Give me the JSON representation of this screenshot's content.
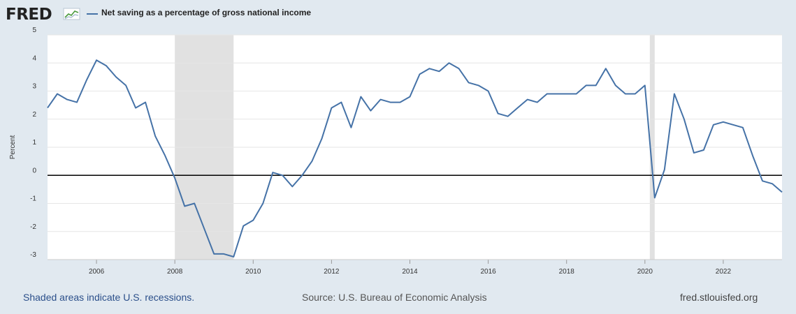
{
  "header": {
    "logo_text": "FRED",
    "logo_icon": "fred-chart-icon",
    "series_title": "Net saving as a percentage of gross national income"
  },
  "footer": {
    "recession_note": "Shaded areas indicate U.S. recessions.",
    "source": "Source: U.S. Bureau of Economic Analysis",
    "site": "fred.stlouisfed.org"
  },
  "colors": {
    "background": "#e1e9f0",
    "plot_background": "#ffffff",
    "series": "#4572a7",
    "recession": "#e1e1e1",
    "gridline": "#e6e6e6",
    "zero_line": "#000000"
  },
  "chart_data": {
    "type": "line",
    "title": "Net saving as a percentage of gross national income",
    "xlabel": "",
    "ylabel": "Percent",
    "ylim": [
      -3,
      5
    ],
    "xlim": [
      2004.75,
      2023.5
    ],
    "yticks": [
      5,
      4,
      3,
      2,
      1,
      0,
      -1,
      -2,
      -3
    ],
    "xticks": [
      2006,
      2008,
      2010,
      2012,
      2014,
      2016,
      2018,
      2020,
      2022
    ],
    "grid": true,
    "zero_line": true,
    "recessions": [
      [
        2008.0,
        2009.5
      ],
      [
        2020.125,
        2020.25
      ]
    ],
    "series": [
      {
        "name": "Net saving as a percentage of gross national income",
        "x": [
          2004.75,
          2005.0,
          2005.25,
          2005.5,
          2005.75,
          2006.0,
          2006.25,
          2006.5,
          2006.75,
          2007.0,
          2007.25,
          2007.5,
          2007.75,
          2008.0,
          2008.25,
          2008.5,
          2008.75,
          2009.0,
          2009.25,
          2009.5,
          2009.75,
          2010.0,
          2010.25,
          2010.5,
          2010.75,
          2011.0,
          2011.25,
          2011.5,
          2011.75,
          2012.0,
          2012.25,
          2012.5,
          2012.75,
          2013.0,
          2013.25,
          2013.5,
          2013.75,
          2014.0,
          2014.25,
          2014.5,
          2014.75,
          2015.0,
          2015.25,
          2015.5,
          2015.75,
          2016.0,
          2016.25,
          2016.5,
          2016.75,
          2017.0,
          2017.25,
          2017.5,
          2017.75,
          2018.0,
          2018.25,
          2018.5,
          2018.75,
          2019.0,
          2019.25,
          2019.5,
          2019.75,
          2020.0,
          2020.25,
          2020.5,
          2020.75,
          2021.0,
          2021.25,
          2021.5,
          2021.75,
          2022.0,
          2022.25,
          2022.5,
          2022.75,
          2023.0,
          2023.25,
          2023.5
        ],
        "y": [
          2.4,
          2.9,
          2.7,
          2.6,
          3.4,
          4.1,
          3.9,
          3.5,
          3.2,
          2.4,
          2.6,
          1.4,
          0.7,
          -0.1,
          -1.1,
          -1.0,
          -1.9,
          -2.8,
          -2.8,
          -2.9,
          -1.8,
          -1.6,
          -1.0,
          0.1,
          0.0,
          -0.4,
          0.0,
          0.5,
          1.3,
          2.4,
          2.6,
          1.7,
          2.8,
          2.3,
          2.7,
          2.6,
          2.6,
          2.8,
          3.6,
          3.8,
          3.7,
          4.0,
          3.8,
          3.3,
          3.2,
          3.0,
          2.2,
          2.1,
          2.4,
          2.7,
          2.6,
          2.9,
          2.9,
          2.9,
          2.9,
          3.2,
          3.2,
          3.8,
          3.2,
          2.9,
          2.9,
          3.2,
          -0.8,
          0.2,
          2.9,
          2.0,
          0.8,
          0.9,
          1.8,
          1.9,
          1.8,
          1.7,
          0.7,
          -0.2,
          -0.3,
          -0.6
        ]
      }
    ]
  }
}
